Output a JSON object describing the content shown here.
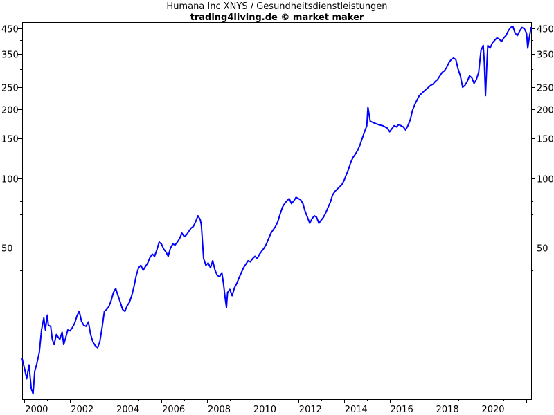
{
  "chart_data": {
    "type": "line",
    "title": "Humana Inc XNYS / Gesundheitsdienstleistungen",
    "subtitle": "trading4living.de © market maker",
    "y_scale": "log",
    "ylim": [
      11,
      480
    ],
    "xlim": [
      1999.9,
      2022.2
    ],
    "grid": false,
    "y_ticks": [
      450,
      350,
      250,
      200,
      150,
      100,
      50
    ],
    "x_ticks": [
      "2000",
      "2002",
      "2004",
      "2006",
      "2008",
      "2010",
      "2012",
      "2014",
      "2016",
      "2018",
      "2020"
    ],
    "series": [
      {
        "color": "#0000ff",
        "points": [
          [
            1999.9,
            16.5
          ],
          [
            2000.0,
            15.0
          ],
          [
            2000.1,
            13.5
          ],
          [
            2000.2,
            15.5
          ],
          [
            2000.3,
            12.2
          ],
          [
            2000.38,
            11.6
          ],
          [
            2000.45,
            14.5
          ],
          [
            2000.55,
            15.8
          ],
          [
            2000.65,
            17.5
          ],
          [
            2000.75,
            22.0
          ],
          [
            2000.85,
            24.8
          ],
          [
            2000.92,
            22.0
          ],
          [
            2001.0,
            25.5
          ],
          [
            2001.05,
            23.0
          ],
          [
            2001.15,
            22.8
          ],
          [
            2001.22,
            20.0
          ],
          [
            2001.3,
            19.0
          ],
          [
            2001.4,
            21.0
          ],
          [
            2001.55,
            20.0
          ],
          [
            2001.65,
            21.5
          ],
          [
            2001.72,
            19.0
          ],
          [
            2001.8,
            20.2
          ],
          [
            2001.9,
            22.0
          ],
          [
            2002.0,
            21.8
          ],
          [
            2002.1,
            22.5
          ],
          [
            2002.2,
            23.5
          ],
          [
            2002.3,
            25.3
          ],
          [
            2002.4,
            26.5
          ],
          [
            2002.5,
            24.0
          ],
          [
            2002.6,
            23.0
          ],
          [
            2002.7,
            22.8
          ],
          [
            2002.8,
            23.8
          ],
          [
            2002.9,
            21.0
          ],
          [
            2003.0,
            19.5
          ],
          [
            2003.1,
            18.8
          ],
          [
            2003.2,
            18.4
          ],
          [
            2003.3,
            19.5
          ],
          [
            2003.4,
            22.5
          ],
          [
            2003.5,
            26.5
          ],
          [
            2003.6,
            27.0
          ],
          [
            2003.7,
            27.8
          ],
          [
            2003.8,
            29.5
          ],
          [
            2003.9,
            32.0
          ],
          [
            2004.0,
            33.3
          ],
          [
            2004.1,
            31.0
          ],
          [
            2004.2,
            29.0
          ],
          [
            2004.3,
            27.0
          ],
          [
            2004.4,
            26.5
          ],
          [
            2004.5,
            28.0
          ],
          [
            2004.6,
            29.0
          ],
          [
            2004.7,
            31.0
          ],
          [
            2004.8,
            34.0
          ],
          [
            2004.9,
            38.0
          ],
          [
            2005.0,
            41.0
          ],
          [
            2005.1,
            42.0
          ],
          [
            2005.2,
            40.0
          ],
          [
            2005.3,
            41.5
          ],
          [
            2005.4,
            43.0
          ],
          [
            2005.5,
            45.5
          ],
          [
            2005.6,
            47.0
          ],
          [
            2005.7,
            46.0
          ],
          [
            2005.8,
            49.0
          ],
          [
            2005.9,
            53.0
          ],
          [
            2006.0,
            52.0
          ],
          [
            2006.1,
            49.5
          ],
          [
            2006.2,
            48.0
          ],
          [
            2006.3,
            46.0
          ],
          [
            2006.4,
            50.0
          ],
          [
            2006.5,
            52.0
          ],
          [
            2006.6,
            51.5
          ],
          [
            2006.7,
            53.0
          ],
          [
            2006.8,
            55.0
          ],
          [
            2006.9,
            58.0
          ],
          [
            2007.0,
            56.0
          ],
          [
            2007.1,
            57.0
          ],
          [
            2007.2,
            59.0
          ],
          [
            2007.3,
            61.0
          ],
          [
            2007.4,
            62.0
          ],
          [
            2007.5,
            65.0
          ],
          [
            2007.6,
            69.0
          ],
          [
            2007.7,
            66.5
          ],
          [
            2007.75,
            63.0
          ],
          [
            2007.85,
            45.0
          ],
          [
            2007.95,
            42.0
          ],
          [
            2008.05,
            43.0
          ],
          [
            2008.15,
            41.0
          ],
          [
            2008.25,
            44.0
          ],
          [
            2008.35,
            40.0
          ],
          [
            2008.45,
            38.0
          ],
          [
            2008.55,
            37.5
          ],
          [
            2008.65,
            39.0
          ],
          [
            2008.72,
            35.0
          ],
          [
            2008.8,
            30.0
          ],
          [
            2008.85,
            27.5
          ],
          [
            2008.9,
            32.0
          ],
          [
            2009.0,
            33.0
          ],
          [
            2009.1,
            31.0
          ],
          [
            2009.2,
            33.5
          ],
          [
            2009.3,
            35.0
          ],
          [
            2009.4,
            37.0
          ],
          [
            2009.5,
            39.0
          ],
          [
            2009.6,
            41.0
          ],
          [
            2009.7,
            42.5
          ],
          [
            2009.8,
            44.0
          ],
          [
            2009.9,
            43.5
          ],
          [
            2010.0,
            45.0
          ],
          [
            2010.1,
            46.0
          ],
          [
            2010.2,
            45.0
          ],
          [
            2010.3,
            47.0
          ],
          [
            2010.4,
            48.5
          ],
          [
            2010.5,
            50.0
          ],
          [
            2010.6,
            52.0
          ],
          [
            2010.7,
            55.0
          ],
          [
            2010.8,
            58.0
          ],
          [
            2010.9,
            60.0
          ],
          [
            2011.0,
            62.0
          ],
          [
            2011.1,
            65.0
          ],
          [
            2011.2,
            70.0
          ],
          [
            2011.3,
            75.0
          ],
          [
            2011.4,
            78.0
          ],
          [
            2011.5,
            80.0
          ],
          [
            2011.6,
            82.0
          ],
          [
            2011.7,
            78.0
          ],
          [
            2011.8,
            80.0
          ],
          [
            2011.9,
            83.0
          ],
          [
            2012.0,
            82.0
          ],
          [
            2012.1,
            81.0
          ],
          [
            2012.2,
            78.0
          ],
          [
            2012.3,
            72.0
          ],
          [
            2012.4,
            68.0
          ],
          [
            2012.5,
            64.0
          ],
          [
            2012.6,
            67.0
          ],
          [
            2012.7,
            69.0
          ],
          [
            2012.8,
            68.0
          ],
          [
            2012.9,
            64.0
          ],
          [
            2013.0,
            66.0
          ],
          [
            2013.1,
            68.0
          ],
          [
            2013.2,
            71.0
          ],
          [
            2013.3,
            75.0
          ],
          [
            2013.4,
            79.0
          ],
          [
            2013.5,
            85.0
          ],
          [
            2013.6,
            88.0
          ],
          [
            2013.7,
            90.0
          ],
          [
            2013.8,
            92.0
          ],
          [
            2013.9,
            94.0
          ],
          [
            2014.0,
            98.0
          ],
          [
            2014.1,
            104.0
          ],
          [
            2014.2,
            110.0
          ],
          [
            2014.3,
            118.0
          ],
          [
            2014.4,
            124.0
          ],
          [
            2014.5,
            128.0
          ],
          [
            2014.6,
            133.0
          ],
          [
            2014.7,
            140.0
          ],
          [
            2014.8,
            150.0
          ],
          [
            2014.9,
            160.0
          ],
          [
            2015.0,
            170.0
          ],
          [
            2015.05,
            205.0
          ],
          [
            2015.15,
            178.0
          ],
          [
            2015.3,
            175.0
          ],
          [
            2015.5,
            172.0
          ],
          [
            2015.7,
            170.0
          ],
          [
            2015.9,
            166.0
          ],
          [
            2016.0,
            160.0
          ],
          [
            2016.1,
            165.0
          ],
          [
            2016.2,
            170.0
          ],
          [
            2016.3,
            168.0
          ],
          [
            2016.4,
            172.0
          ],
          [
            2016.5,
            170.0
          ],
          [
            2016.6,
            168.0
          ],
          [
            2016.7,
            163.0
          ],
          [
            2016.8,
            170.0
          ],
          [
            2016.9,
            180.0
          ],
          [
            2017.0,
            198.0
          ],
          [
            2017.1,
            210.0
          ],
          [
            2017.2,
            220.0
          ],
          [
            2017.3,
            230.0
          ],
          [
            2017.4,
            235.0
          ],
          [
            2017.5,
            240.0
          ],
          [
            2017.6,
            245.0
          ],
          [
            2017.7,
            250.0
          ],
          [
            2017.8,
            255.0
          ],
          [
            2017.9,
            258.0
          ],
          [
            2018.0,
            265.0
          ],
          [
            2018.1,
            270.0
          ],
          [
            2018.2,
            280.0
          ],
          [
            2018.3,
            290.0
          ],
          [
            2018.4,
            295.0
          ],
          [
            2018.5,
            305.0
          ],
          [
            2018.6,
            320.0
          ],
          [
            2018.7,
            330.0
          ],
          [
            2018.8,
            335.0
          ],
          [
            2018.9,
            330.0
          ],
          [
            2019.0,
            300.0
          ],
          [
            2019.1,
            280.0
          ],
          [
            2019.2,
            250.0
          ],
          [
            2019.3,
            255.0
          ],
          [
            2019.4,
            265.0
          ],
          [
            2019.5,
            280.0
          ],
          [
            2019.6,
            275.0
          ],
          [
            2019.7,
            260.0
          ],
          [
            2019.8,
            270.0
          ],
          [
            2019.9,
            290.0
          ],
          [
            2020.0,
            360.0
          ],
          [
            2020.1,
            380.0
          ],
          [
            2020.15,
            320.0
          ],
          [
            2020.2,
            230.0
          ],
          [
            2020.25,
            300.0
          ],
          [
            2020.3,
            380.0
          ],
          [
            2020.4,
            370.0
          ],
          [
            2020.5,
            390.0
          ],
          [
            2020.6,
            400.0
          ],
          [
            2020.7,
            410.0
          ],
          [
            2020.8,
            405.0
          ],
          [
            2020.9,
            395.0
          ],
          [
            2021.0,
            410.0
          ],
          [
            2021.1,
            420.0
          ],
          [
            2021.2,
            440.0
          ],
          [
            2021.3,
            455.0
          ],
          [
            2021.4,
            460.0
          ],
          [
            2021.5,
            430.0
          ],
          [
            2021.6,
            420.0
          ],
          [
            2021.7,
            440.0
          ],
          [
            2021.8,
            455.0
          ],
          [
            2021.9,
            450.0
          ],
          [
            2022.0,
            430.0
          ],
          [
            2022.05,
            370.0
          ],
          [
            2022.1,
            400.0
          ],
          [
            2022.15,
            430.0
          ],
          [
            2022.2,
            455.0
          ]
        ]
      }
    ]
  }
}
